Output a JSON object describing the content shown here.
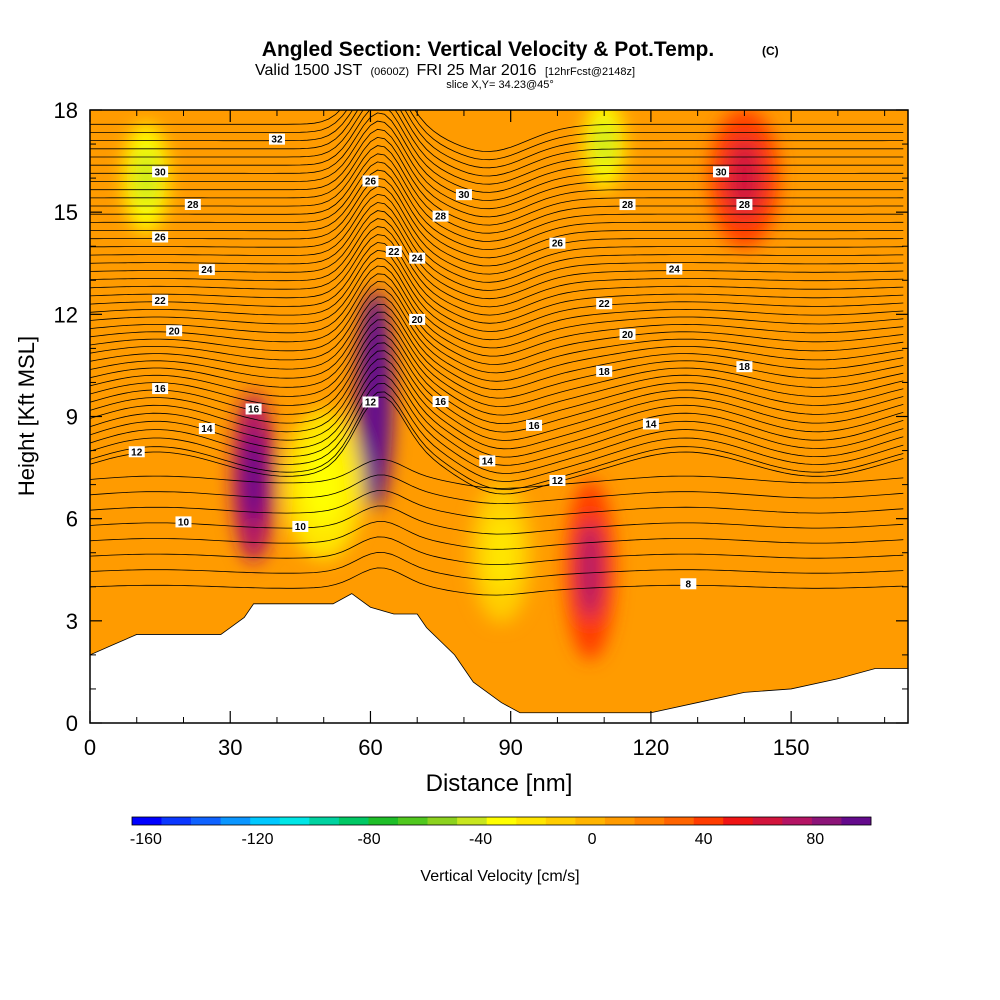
{
  "header": {
    "title_main": "Angled Section: Vertical Velocity & Pot.Temp.",
    "title_c": "(C)",
    "valid_a": "Valid 1500 JST",
    "valid_b": "(0600Z)",
    "valid_c": "FRI 25 Mar 2016",
    "valid_d": "[12hrFcst@2148z]",
    "slice": "slice X,Y= 34.23@45°"
  },
  "chart_data": {
    "type": "heatmap",
    "title": "Angled Section: Vertical Velocity & Pot.Temp.",
    "xlabel": "Distance [nm]",
    "ylabel": "Height [Kft MSL]",
    "xlim": [
      0,
      175
    ],
    "ylim": [
      0,
      18
    ],
    "x_ticks": [
      0,
      30,
      60,
      90,
      120,
      150
    ],
    "y_ticks": [
      0,
      3,
      6,
      9,
      12,
      15,
      18
    ],
    "colorbar": {
      "label": "Vertical Velocity [cm/s]",
      "tick_values": [
        -160,
        -120,
        -80,
        -40,
        0,
        40,
        80
      ],
      "range": [
        -165,
        100
      ],
      "colors": [
        "#0000ff",
        "#0a37ff",
        "#0f62ff",
        "#0a96ff",
        "#00c8ff",
        "#00e6e6",
        "#00d2a0",
        "#00c864",
        "#1ebe28",
        "#50c81e",
        "#8cd21e",
        "#c8e61e",
        "#ffff00",
        "#ffe600",
        "#ffcd00",
        "#ffb400",
        "#ff9b00",
        "#ff8200",
        "#ff6400",
        "#ff3c00",
        "#f01414",
        "#d2143c",
        "#b41464",
        "#8c1478",
        "#640a8c"
      ]
    },
    "velocity_cells": [
      {
        "x": 35,
        "y": 7.2,
        "value": 75
      },
      {
        "x": 61,
        "y": 9.5,
        "value": 100
      },
      {
        "x": 107,
        "y": 4.5,
        "value": 45
      },
      {
        "x": 140,
        "y": 16,
        "value": 40
      },
      {
        "x": 12,
        "y": 16,
        "value": -35
      },
      {
        "x": 110,
        "y": 17,
        "value": -30
      },
      {
        "x": 50,
        "y": 7,
        "value": -20
      },
      {
        "x": 88,
        "y": 5,
        "value": -15
      }
    ],
    "theta_contours": [
      {
        "value": 8,
        "labels": [
          "8"
        ]
      },
      {
        "value": 10,
        "labels": [
          "10",
          "10"
        ]
      },
      {
        "value": 12,
        "labels": [
          "12",
          "12",
          "12"
        ]
      },
      {
        "value": 14,
        "labels": [
          "14",
          "14",
          "14"
        ]
      },
      {
        "value": 16,
        "labels": [
          "16",
          "16",
          "16",
          "16"
        ]
      },
      {
        "value": 18,
        "labels": [
          "18",
          "18"
        ]
      },
      {
        "value": 20,
        "labels": [
          "20",
          "20",
          "20"
        ]
      },
      {
        "value": 22,
        "labels": [
          "22",
          "22",
          "22"
        ]
      },
      {
        "value": 24,
        "labels": [
          "24",
          "24",
          "24"
        ]
      },
      {
        "value": 26,
        "labels": [
          "26",
          "26",
          "26"
        ]
      },
      {
        "value": 28,
        "labels": [
          "28",
          "28",
          "28",
          "28"
        ]
      },
      {
        "value": 30,
        "labels": [
          "30",
          "30",
          "30"
        ]
      },
      {
        "value": 32,
        "labels": [
          "32"
        ]
      }
    ],
    "terrain": [
      [
        0,
        2
      ],
      [
        5,
        2.3
      ],
      [
        10,
        2.6
      ],
      [
        20,
        2.6
      ],
      [
        28,
        2.6
      ],
      [
        30,
        2.8
      ],
      [
        33,
        3.1
      ],
      [
        35,
        3.5
      ],
      [
        40,
        3.5
      ],
      [
        52,
        3.5
      ],
      [
        56,
        3.8
      ],
      [
        58,
        3.6
      ],
      [
        60,
        3.4
      ],
      [
        65,
        3.2
      ],
      [
        70,
        3.2
      ],
      [
        72,
        2.8
      ],
      [
        75,
        2.4
      ],
      [
        78,
        2.0
      ],
      [
        80,
        1.6
      ],
      [
        82,
        1.2
      ],
      [
        85,
        0.9
      ],
      [
        88,
        0.6
      ],
      [
        92,
        0.3
      ],
      [
        100,
        0.3
      ],
      [
        110,
        0.3
      ],
      [
        120,
        0.3
      ],
      [
        130,
        0.6
      ],
      [
        140,
        0.9
      ],
      [
        150,
        1.0
      ],
      [
        160,
        1.3
      ],
      [
        168,
        1.6
      ],
      [
        175,
        1.6
      ]
    ]
  }
}
